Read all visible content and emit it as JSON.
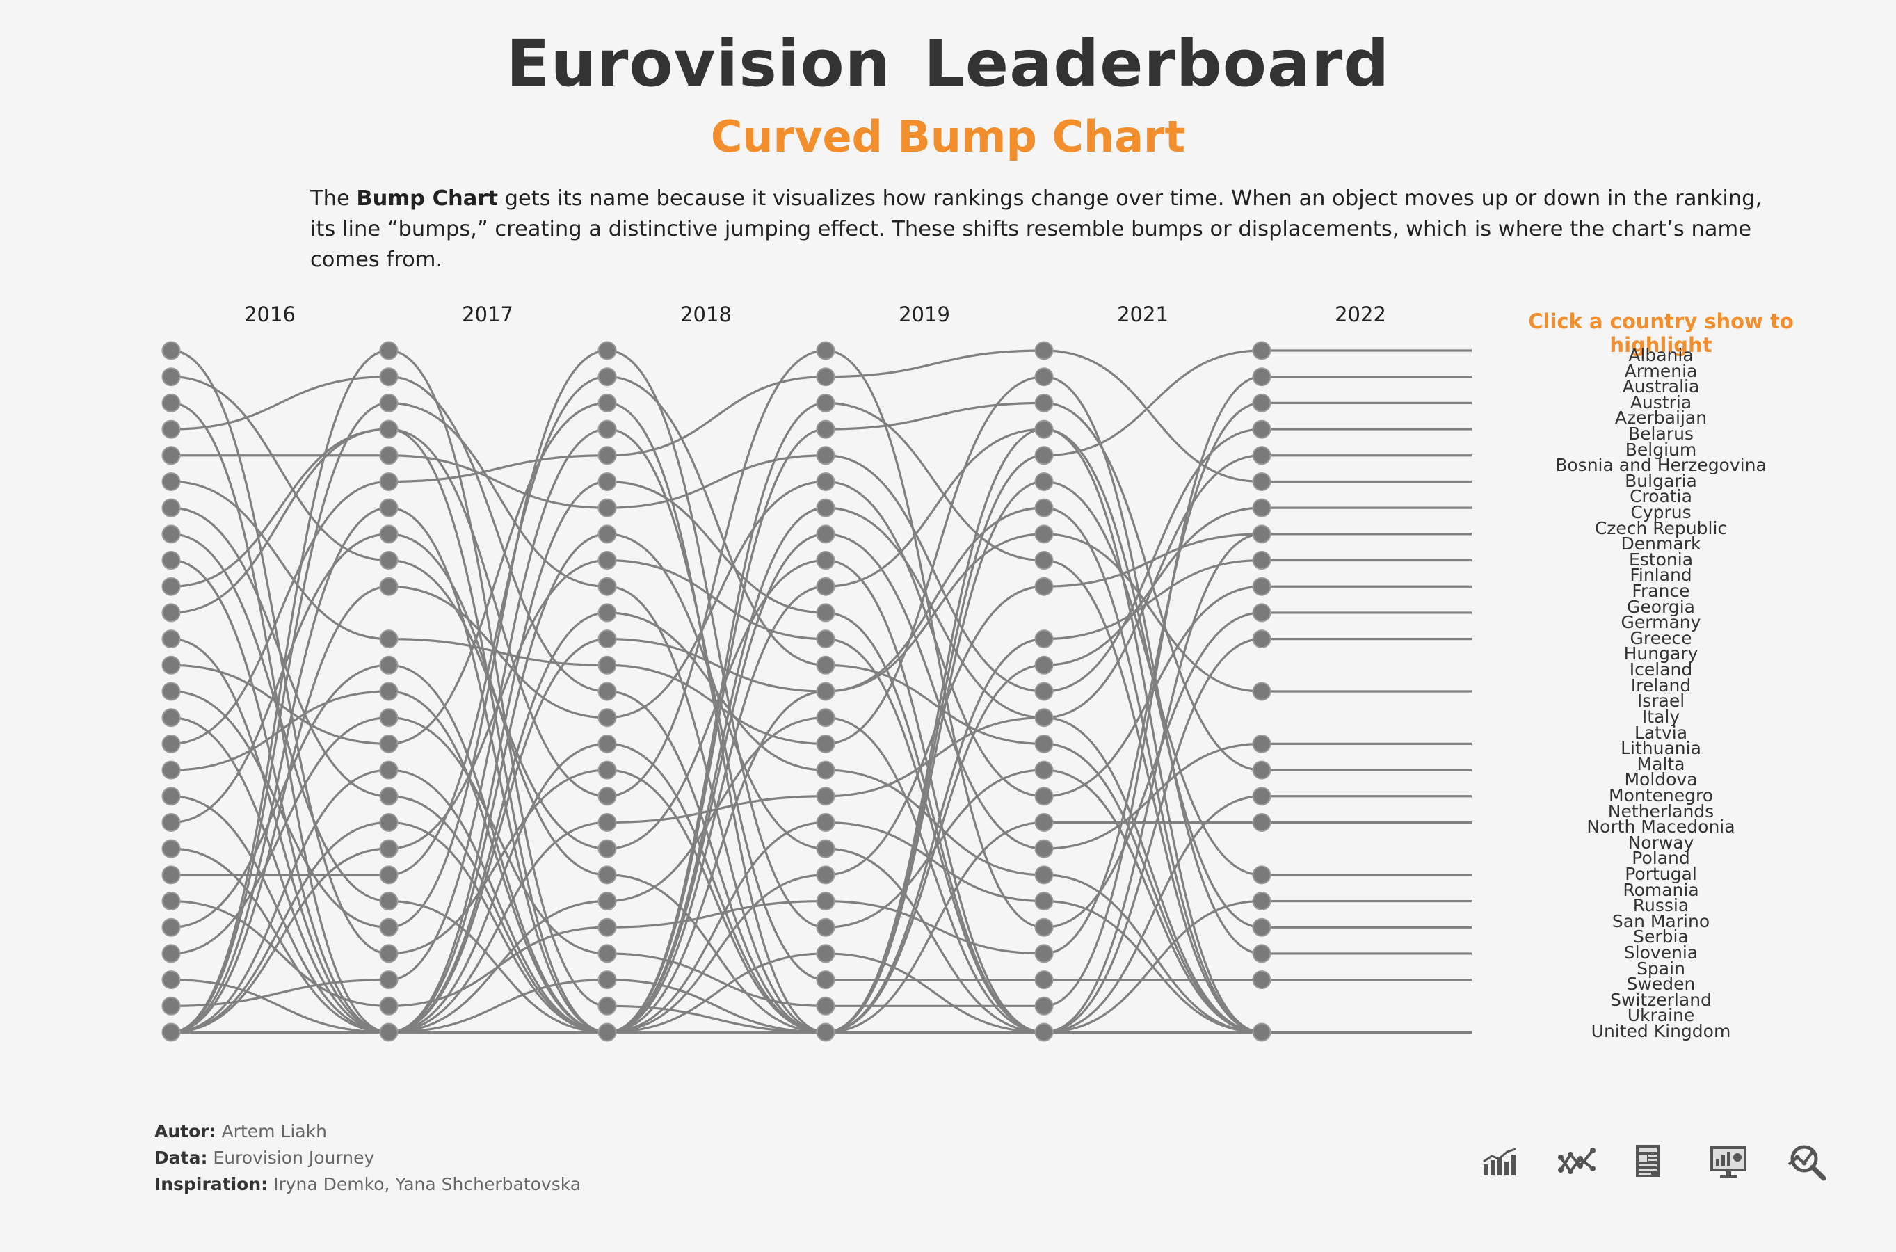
{
  "header": {
    "title": "Eurovision  Leaderboard",
    "subtitle": "Curved Bump Chart",
    "description_pre": "The ",
    "description_bold": "Bump Chart",
    "description_post": " gets its name because it visualizes how rankings change over time. When an object moves up or down in the ranking, its line “bumps,” creating a distinctive jumping effect. These shifts resemble bumps or displacements, which is where the chart’s name comes from."
  },
  "legend": {
    "title": "Click a country show to highlight",
    "countries": [
      "Albania",
      "Armenia",
      "Australia",
      "Austria",
      "Azerbaijan",
      "Belarus",
      "Belgium",
      "Bosnia and Herzegovina",
      "Bulgaria",
      "Croatia",
      "Cyprus",
      "Czech Republic",
      "Denmark",
      "Estonia",
      "Finland",
      "France",
      "Georgia",
      "Germany",
      "Greece",
      "Hungary",
      "Iceland",
      "Ireland",
      "Israel",
      "Italy",
      "Latvia",
      "Lithuania",
      "Malta",
      "Moldova",
      "Montenegro",
      "Netherlands",
      "North Macedonia",
      "Norway",
      "Poland",
      "Portugal",
      "Romania",
      "Russia",
      "San Marino",
      "Serbia",
      "Slovenia",
      "Spain",
      "Sweden",
      "Switzerland",
      "Ukraine",
      "United Kingdom"
    ]
  },
  "credits": {
    "author_label": "Autor:",
    "author": "Artem Liakh",
    "data_label": "Data:",
    "data": "Eurovision Journey",
    "inspiration_label": "Inspiration:",
    "inspiration": "Iryna Demko,  Yana Shcherbatovska"
  },
  "toolbar": {
    "icons": [
      "bar-chart-icon",
      "line-chart-icon",
      "report-icon",
      "dashboard-icon",
      "analytics-search-icon"
    ]
  },
  "colors": {
    "line": "#808080",
    "dot": "#7a7a7a",
    "accent": "#f28e2c",
    "title": "#333333"
  },
  "chart_data": {
    "type": "line",
    "subtype": "curved bump chart",
    "x": [
      "2016",
      "2017",
      "2018",
      "2019",
      "2021",
      "2022"
    ],
    "y_meaning": "rank (1 = top), 27 = did not reach final",
    "max_rank": 27,
    "series": [
      {
        "name": "Albania",
        "ranks": [
          27,
          27,
          11,
          17,
          21,
          27
        ]
      },
      {
        "name": "Armenia",
        "ranks": [
          7,
          18,
          27,
          27,
          27,
          27
        ]
      },
      {
        "name": "Australia",
        "ranks": [
          2,
          9,
          20,
          9,
          27,
          27
        ]
      },
      {
        "name": "Austria",
        "ranks": [
          13,
          16,
          3,
          27,
          27,
          27
        ]
      },
      {
        "name": "Azerbaijan",
        "ranks": [
          17,
          14,
          27,
          8,
          20,
          16
        ]
      },
      {
        "name": "Belarus",
        "ranks": [
          27,
          17,
          27,
          24,
          27,
          27
        ]
      },
      {
        "name": "Belgium",
        "ranks": [
          10,
          4,
          27,
          27,
          19,
          19
        ]
      },
      {
        "name": "Bosnia and Herzegovina",
        "ranks": [
          27,
          27,
          27,
          27,
          27,
          27
        ]
      },
      {
        "name": "Bulgaria",
        "ranks": [
          4,
          2,
          14,
          27,
          4,
          27
        ]
      },
      {
        "name": "Croatia",
        "ranks": [
          23,
          13,
          27,
          27,
          27,
          27
        ]
      },
      {
        "name": "Cyprus",
        "ranks": [
          21,
          21,
          2,
          13,
          16,
          27
        ]
      },
      {
        "name": "Czech Republic",
        "ranks": [
          25,
          27,
          6,
          11,
          27,
          22
        ]
      },
      {
        "name": "Denmark",
        "ranks": [
          27,
          20,
          9,
          12,
          27,
          27
        ]
      },
      {
        "name": "Estonia",
        "ranks": [
          27,
          27,
          8,
          20,
          27,
          8
        ]
      },
      {
        "name": "Finland",
        "ranks": [
          27,
          27,
          25,
          27,
          6,
          21
        ]
      },
      {
        "name": "France",
        "ranks": [
          6,
          12,
          13,
          16,
          2,
          24
        ]
      },
      {
        "name": "Georgia",
        "ranks": [
          20,
          27,
          27,
          27,
          27,
          27
        ]
      },
      {
        "name": "Germany",
        "ranks": [
          26,
          25,
          4,
          25,
          25,
          25
        ]
      },
      {
        "name": "Greece",
        "ranks": [
          27,
          19,
          27,
          21,
          10,
          8
        ]
      },
      {
        "name": "Hungary",
        "ranks": [
          19,
          8,
          21,
          27,
          27,
          27
        ]
      },
      {
        "name": "Iceland",
        "ranks": [
          27,
          27,
          27,
          10,
          4,
          23
        ]
      },
      {
        "name": "Ireland",
        "ranks": [
          27,
          27,
          16,
          27,
          27,
          27
        ]
      },
      {
        "name": "Israel",
        "ranks": [
          14,
          23,
          1,
          23,
          17,
          27
        ]
      },
      {
        "name": "Italy",
        "ranks": [
          16,
          6,
          5,
          2,
          1,
          6
        ]
      },
      {
        "name": "Latvia",
        "ranks": [
          15,
          27,
          27,
          27,
          27,
          27
        ]
      },
      {
        "name": "Lithuania",
        "ranks": [
          9,
          27,
          12,
          14,
          8,
          14
        ]
      },
      {
        "name": "Malta",
        "ranks": [
          12,
          27,
          27,
          14,
          7,
          27
        ]
      },
      {
        "name": "Moldova",
        "ranks": [
          27,
          3,
          10,
          27,
          13,
          7
        ]
      },
      {
        "name": "Montenegro",
        "ranks": [
          27,
          27,
          27,
          27,
          27,
          27
        ]
      },
      {
        "name": "Netherlands",
        "ranks": [
          11,
          4,
          18,
          1,
          23,
          11
        ]
      },
      {
        "name": "North Macedonia",
        "ranks": [
          27,
          27,
          27,
          7,
          15,
          27
        ]
      },
      {
        "name": "Norway",
        "ranks": [
          27,
          10,
          15,
          6,
          18,
          10
        ]
      },
      {
        "name": "Poland",
        "ranks": [
          8,
          22,
          27,
          27,
          27,
          12
        ]
      },
      {
        "name": "Portugal",
        "ranks": [
          27,
          1,
          26,
          27,
          12,
          9
        ]
      },
      {
        "name": "Romania",
        "ranks": [
          27,
          7,
          27,
          27,
          27,
          18
        ]
      },
      {
        "name": "Russia",
        "ranks": [
          3,
          27,
          27,
          3,
          9,
          27
        ]
      },
      {
        "name": "San Marino",
        "ranks": [
          27,
          27,
          27,
          19,
          22,
          27
        ]
      },
      {
        "name": "Serbia",
        "ranks": [
          18,
          27,
          19,
          18,
          15,
          5
        ]
      },
      {
        "name": "Slovenia",
        "ranks": [
          27,
          27,
          22,
          15,
          27,
          27
        ]
      },
      {
        "name": "Spain",
        "ranks": [
          22,
          26,
          23,
          22,
          24,
          3
        ]
      },
      {
        "name": "Sweden",
        "ranks": [
          5,
          5,
          7,
          5,
          14,
          4
        ]
      },
      {
        "name": "Switzerland",
        "ranks": [
          27,
          27,
          27,
          4,
          3,
          17
        ]
      },
      {
        "name": "Ukraine",
        "ranks": [
          1,
          24,
          17,
          27,
          5,
          1
        ]
      },
      {
        "name": "United Kingdom",
        "ranks": [
          24,
          15,
          24,
          26,
          26,
          2
        ]
      }
    ]
  }
}
